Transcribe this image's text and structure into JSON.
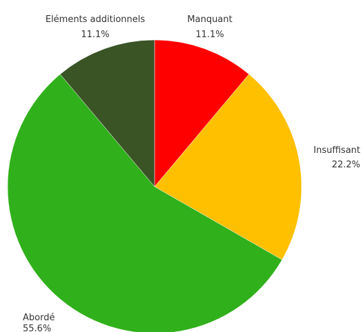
{
  "chart_data": {
    "type": "pie",
    "slices": [
      {
        "label": "Manquant",
        "value": 11.1,
        "percent_label": "11.1%",
        "color": "#ff0000"
      },
      {
        "label": "Insuffisant",
        "value": 22.2,
        "percent_label": "22.2%",
        "color": "#ffc000"
      },
      {
        "label": "Abordé",
        "value": 55.6,
        "percent_label": "55.6%",
        "color": "#30b01a"
      },
      {
        "label": "Eléments additionnels",
        "value": 11.1,
        "percent_label": "11.1%",
        "color": "#3a5426"
      }
    ],
    "start_angle": "12 o'clock",
    "direction": "clockwise",
    "legend": "none",
    "title": ""
  }
}
